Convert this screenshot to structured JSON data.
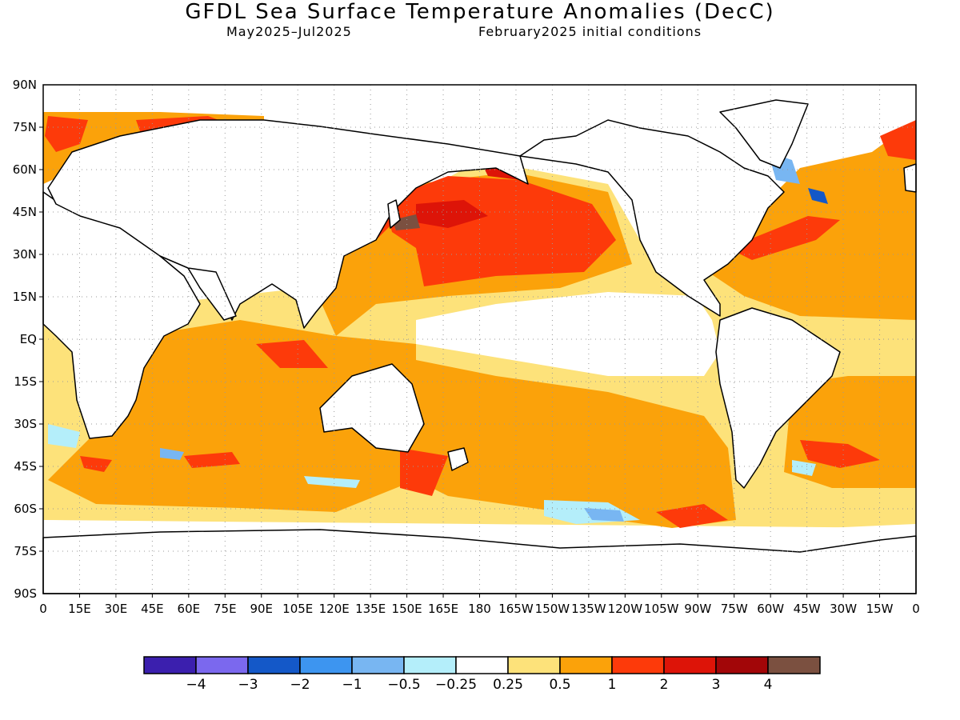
{
  "header": {
    "title": "GFDL Sea Surface Temperature Anomalies (DecC)",
    "period": "May2025–Jul2025",
    "init": "February2025 initial conditions"
  },
  "axes": {
    "lat_labels": [
      "90N",
      "75N",
      "60N",
      "45N",
      "30N",
      "15N",
      "EQ",
      "15S",
      "30S",
      "45S",
      "60S",
      "75S",
      "90S"
    ],
    "lon_labels": [
      "0",
      "15E",
      "30E",
      "45E",
      "60E",
      "75E",
      "90E",
      "105E",
      "120E",
      "135E",
      "150E",
      "165E",
      "180",
      "165W",
      "150W",
      "135W",
      "120W",
      "105W",
      "90W",
      "75W",
      "60W",
      "45W",
      "30W",
      "15W",
      "0"
    ],
    "grid": "dotted"
  },
  "legend": {
    "colors": [
      "#3b1fae",
      "#7b68ee",
      "#1458c8",
      "#3d95f0",
      "#78b6f2",
      "#b4eefa",
      "#ffffff",
      "#fde27a",
      "#fba20a",
      "#fd3a0a",
      "#dd1408",
      "#a20608",
      "#7b5040"
    ],
    "labels": [
      "−4",
      "−3",
      "−2",
      "−1",
      "−0.5",
      "−0.25",
      "0.25",
      "0.5",
      "1",
      "2",
      "3",
      "4"
    ]
  },
  "colors": {
    "land_outline": "#000000",
    "warm_moderate": "#fde27a",
    "warm_strong": "#fba20a",
    "hot": "#fd3a0a",
    "very_hot": "#dd1408",
    "cool_slight": "#b4eefa",
    "cool": "#78b6f2",
    "cold": "#1458c8"
  }
}
